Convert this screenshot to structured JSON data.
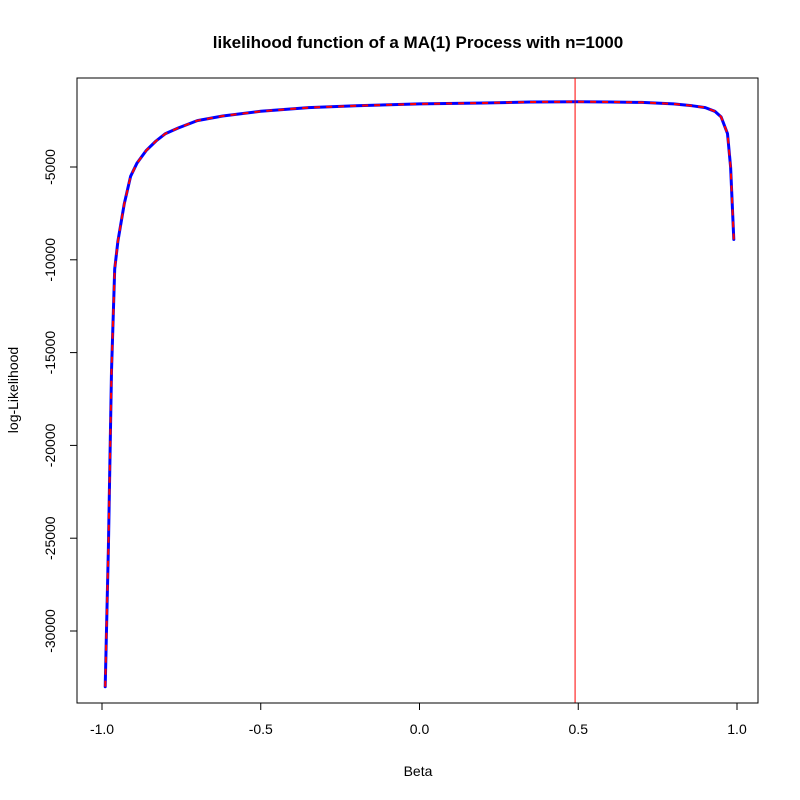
{
  "chart_data": {
    "type": "line",
    "title": "likelihood function of a MA(1) Process with n=1000",
    "xlabel": "Beta",
    "ylabel": "log-Likelihood",
    "xlim": [
      -1.0,
      1.0
    ],
    "ylim": [
      -33000,
      -1000
    ],
    "x_ticks": [
      -1.0,
      -0.5,
      0.0,
      0.5,
      1.0
    ],
    "x_tick_labels": [
      "-1.0",
      "-0.5",
      "0.0",
      "0.5",
      "1.0"
    ],
    "y_ticks": [
      -30000,
      -25000,
      -20000,
      -15000,
      -10000,
      -5000
    ],
    "y_tick_labels": [
      "-30000",
      "-25000",
      "-20000",
      "-15000",
      "-10000",
      "-5000"
    ],
    "grid": false,
    "series": [
      {
        "line_color": "#0000ff",
        "overlay_color": "#ff0000",
        "overlay_style": "dashed",
        "x": [
          -0.99,
          -0.98,
          -0.97,
          -0.96,
          -0.95,
          -0.93,
          -0.91,
          -0.89,
          -0.86,
          -0.83,
          -0.8,
          -0.76,
          -0.7,
          -0.62,
          -0.5,
          -0.35,
          -0.2,
          0.0,
          0.2,
          0.35,
          0.5,
          0.6,
          0.7,
          0.8,
          0.86,
          0.9,
          0.93,
          0.95,
          0.97,
          0.98,
          0.99
        ],
        "y": [
          -33000,
          -25500,
          -16000,
          -10500,
          -9000,
          -7000,
          -5500,
          -4800,
          -4100,
          -3600,
          -3200,
          -2900,
          -2500,
          -2250,
          -2000,
          -1800,
          -1700,
          -1600,
          -1550,
          -1500,
          -1480,
          -1500,
          -1520,
          -1600,
          -1700,
          -1800,
          -2000,
          -2300,
          -3200,
          -5000,
          -8900
        ]
      }
    ],
    "vline": {
      "x": 0.49,
      "color": "#ff0000"
    }
  }
}
